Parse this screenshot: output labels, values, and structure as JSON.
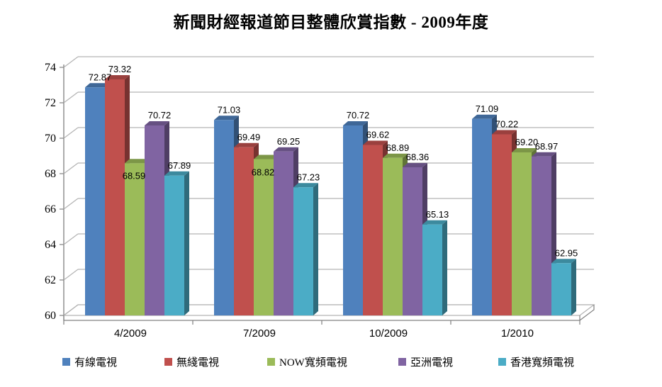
{
  "chart_data": {
    "type": "bar",
    "style": "3d-clustered-column",
    "title": "新聞財經報道節目整體欣賞指數 - 2009年度",
    "xlabel": "",
    "ylabel": "",
    "categories": [
      "4/2009",
      "7/2009",
      "10/2009",
      "1/2010"
    ],
    "series": [
      {
        "name": "有線電視",
        "color": "#4F81BD",
        "values": [
          72.87,
          71.03,
          70.72,
          71.09
        ]
      },
      {
        "name": "無綫電視",
        "color": "#C0504D",
        "values": [
          73.32,
          69.49,
          69.62,
          70.22
        ]
      },
      {
        "name": "NOW寬頻電視",
        "color": "#9BBB59",
        "values": [
          68.59,
          68.82,
          68.89,
          69.2
        ]
      },
      {
        "name": "亞洲電視",
        "color": "#8064A2",
        "values": [
          70.72,
          69.25,
          68.36,
          68.97
        ]
      },
      {
        "name": "香港寬頻電視",
        "color": "#4BACC6",
        "values": [
          67.89,
          67.23,
          65.13,
          62.95
        ]
      }
    ],
    "ylim": [
      60,
      74
    ],
    "yticks": [
      60,
      62,
      64,
      66,
      68,
      70,
      72,
      74
    ],
    "grid": true,
    "value_labels": true,
    "value_label_decimals": 2,
    "legend_position": "bottom",
    "colors": {
      "gridline": "#b3b3b3",
      "axis": "#808080",
      "text": "#000000",
      "background": "#ffffff"
    }
  }
}
